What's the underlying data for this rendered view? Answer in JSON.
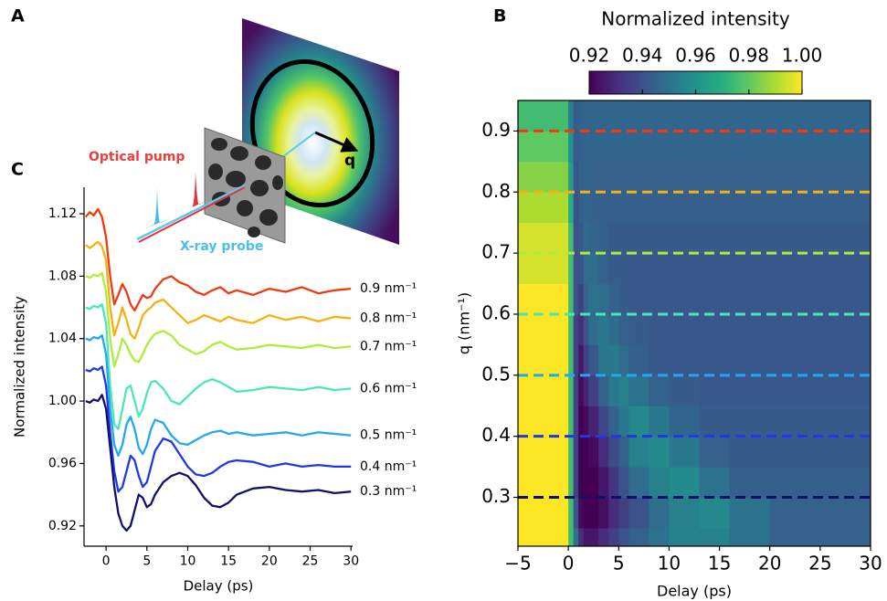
{
  "panel_labels": [
    "A",
    "B",
    "C"
  ],
  "schematic": {
    "pump_label": "Optical pump",
    "probe_label": "X-ray probe",
    "q_label": "q"
  },
  "chart_data": [
    {
      "type": "line",
      "xlabel": "Delay (ps)",
      "ylabel": "Normalized intensity",
      "x": [
        -2.5,
        -2,
        -1.5,
        -1,
        -0.5,
        0,
        0.5,
        1,
        1.5,
        2,
        2.5,
        3,
        3.5,
        4,
        4.5,
        5,
        5.5,
        6,
        7,
        8,
        9,
        10,
        11,
        12,
        13,
        14,
        15,
        16,
        18,
        20,
        22,
        24,
        26,
        28,
        30
      ],
      "xlim": [
        -2.7,
        30.2
      ],
      "xticks": [
        0,
        5,
        10,
        15,
        20,
        25,
        30
      ],
      "ylim": [
        0.907,
        1.137
      ],
      "yticks": [
        0.92,
        0.96,
        {
          "value": 1,
          "label": "1.00"
        },
        1.04,
        1.08,
        1.12
      ],
      "series": [
        {
          "name": "0.9 nm⁻¹",
          "color": "#f03a10",
          "values": [
            1.118,
            1.121,
            1.119,
            1.123,
            1.118,
            1.105,
            1.08,
            1.062,
            1.068,
            1.075,
            1.07,
            1.062,
            1.058,
            1.063,
            1.068,
            1.066,
            1.067,
            1.072,
            1.078,
            1.08,
            1.076,
            1.074,
            1.07,
            1.068,
            1.071,
            1.073,
            1.069,
            1.071,
            1.068,
            1.072,
            1.07,
            1.073,
            1.069,
            1.071,
            1.072
          ]
        },
        {
          "name": "0.8 nm⁻¹",
          "color": "#f8b010",
          "values": [
            1.1,
            1.098,
            1.1,
            1.102,
            1.099,
            1.09,
            1.06,
            1.042,
            1.05,
            1.06,
            1.052,
            1.043,
            1.04,
            1.047,
            1.055,
            1.058,
            1.06,
            1.063,
            1.065,
            1.06,
            1.055,
            1.05,
            1.052,
            1.055,
            1.053,
            1.051,
            1.054,
            1.052,
            1.05,
            1.055,
            1.052,
            1.054,
            1.051,
            1.054,
            1.053
          ]
        },
        {
          "name": "0.7 nm⁻¹",
          "color": "#b0ec3c",
          "values": [
            1.08,
            1.079,
            1.081,
            1.08,
            1.082,
            1.07,
            1.04,
            1.022,
            1.03,
            1.04,
            1.036,
            1.03,
            1.026,
            1.025,
            1.03,
            1.036,
            1.04,
            1.043,
            1.045,
            1.042,
            1.036,
            1.033,
            1.03,
            1.032,
            1.036,
            1.038,
            1.035,
            1.033,
            1.034,
            1.036,
            1.035,
            1.034,
            1.036,
            1.034,
            1.035
          ]
        },
        {
          "name": "0.6 nm⁻¹",
          "color": "#48e8b8",
          "values": [
            1.06,
            1.059,
            1.061,
            1.06,
            1.062,
            1.05,
            1.01,
            0.985,
            0.982,
            0.995,
            1.008,
            1.01,
            1.0,
            0.99,
            0.995,
            1.005,
            1.012,
            1.013,
            1.008,
            1.0,
            0.998,
            1.003,
            1.008,
            1.012,
            1.014,
            1.012,
            1.009,
            1.006,
            1.007,
            1.009,
            1.008,
            1.007,
            1.009,
            1.007,
            1.008
          ]
        },
        {
          "name": "0.5 nm⁻¹",
          "color": "#20a8f0",
          "values": [
            1.04,
            1.039,
            1.041,
            1.04,
            1.042,
            1.03,
            0.995,
            0.972,
            0.965,
            0.972,
            0.985,
            0.99,
            0.982,
            0.97,
            0.966,
            0.972,
            0.982,
            0.988,
            0.986,
            0.978,
            0.973,
            0.972,
            0.975,
            0.978,
            0.98,
            0.981,
            0.979,
            0.98,
            0.978,
            0.979,
            0.98,
            0.978,
            0.98,
            0.979,
            0.978
          ]
        },
        {
          "name": "0.4 nm⁻¹",
          "color": "#2038e6",
          "values": [
            1.02,
            1.019,
            1.021,
            1.02,
            1.022,
            1.01,
            0.98,
            0.955,
            0.942,
            0.945,
            0.955,
            0.965,
            0.962,
            0.952,
            0.945,
            0.948,
            0.958,
            0.968,
            0.976,
            0.974,
            0.966,
            0.958,
            0.953,
            0.952,
            0.954,
            0.958,
            0.961,
            0.962,
            0.961,
            0.958,
            0.96,
            0.958,
            0.959,
            0.958,
            0.958
          ]
        },
        {
          "name": "0.3 nm⁻¹",
          "color": "#10106a",
          "values": [
            1.0,
            0.999,
            1.001,
            1.0,
            1.004,
            0.995,
            0.97,
            0.945,
            0.928,
            0.92,
            0.917,
            0.92,
            0.93,
            0.94,
            0.938,
            0.932,
            0.934,
            0.94,
            0.948,
            0.952,
            0.954,
            0.952,
            0.946,
            0.938,
            0.933,
            0.932,
            0.935,
            0.94,
            0.944,
            0.945,
            0.943,
            0.942,
            0.943,
            0.941,
            0.942
          ]
        }
      ]
    },
    {
      "type": "heatmap",
      "xlabel": "Delay (ps)",
      "ylabel": "q (nm⁻¹)",
      "xlim": [
        -5,
        30
      ],
      "xticks": [
        {
          "value": -5,
          "label": "−5"
        },
        0,
        5,
        10,
        15,
        20,
        25,
        30
      ],
      "ylim": [
        0.22,
        0.95
      ],
      "yticks": [
        0.3,
        0.4,
        0.5,
        0.6,
        0.7,
        0.8,
        0.9
      ],
      "xbins": [
        -5,
        0,
        0.5,
        1,
        1.5,
        2,
        3,
        4,
        5,
        6,
        8,
        10,
        13,
        16,
        20,
        25,
        30
      ],
      "ybins": [
        0.22,
        0.25,
        0.3,
        0.35,
        0.4,
        0.45,
        0.5,
        0.55,
        0.6,
        0.65,
        0.7,
        0.75,
        0.8,
        0.85,
        0.9,
        0.95
      ],
      "values": [
        [
          1.0,
          0.975,
          0.95,
          0.93,
          0.925,
          0.925,
          0.93,
          0.935,
          0.94,
          0.945,
          0.95,
          0.955,
          0.955,
          0.95,
          0.945,
          0.945
        ],
        [
          1.0,
          0.975,
          0.94,
          0.922,
          0.92,
          0.92,
          0.923,
          0.93,
          0.935,
          0.94,
          0.948,
          0.955,
          0.957,
          0.95,
          0.945,
          0.945
        ],
        [
          1.0,
          0.975,
          0.935,
          0.92,
          0.92,
          0.92,
          0.925,
          0.932,
          0.94,
          0.948,
          0.955,
          0.958,
          0.95,
          0.944,
          0.944,
          0.944
        ],
        [
          1.0,
          0.975,
          0.935,
          0.92,
          0.92,
          0.922,
          0.93,
          0.938,
          0.945,
          0.955,
          0.958,
          0.952,
          0.945,
          0.943,
          0.943,
          0.943
        ],
        [
          1.0,
          0.975,
          0.935,
          0.92,
          0.922,
          0.928,
          0.937,
          0.945,
          0.952,
          0.957,
          0.952,
          0.946,
          0.943,
          0.943,
          0.943,
          0.943
        ],
        [
          1.0,
          0.975,
          0.935,
          0.922,
          0.928,
          0.935,
          0.945,
          0.952,
          0.955,
          0.95,
          0.945,
          0.943,
          0.942,
          0.942,
          0.942,
          0.942
        ],
        [
          1.0,
          0.975,
          0.935,
          0.925,
          0.935,
          0.942,
          0.952,
          0.952,
          0.948,
          0.944,
          0.942,
          0.942,
          0.942,
          0.942,
          0.942,
          0.942
        ],
        [
          1.0,
          0.975,
          0.935,
          0.93,
          0.94,
          0.948,
          0.952,
          0.948,
          0.945,
          0.943,
          0.942,
          0.942,
          0.942,
          0.942,
          0.942,
          0.942
        ],
        [
          1.0,
          0.975,
          0.94,
          0.935,
          0.945,
          0.95,
          0.948,
          0.945,
          0.943,
          0.942,
          0.942,
          0.942,
          0.942,
          0.942,
          0.942,
          0.942
        ],
        [
          0.995,
          0.975,
          0.94,
          0.94,
          0.948,
          0.948,
          0.945,
          0.943,
          0.943,
          0.942,
          0.942,
          0.942,
          0.942,
          0.942,
          0.942,
          0.942
        ],
        [
          0.995,
          0.975,
          0.94,
          0.942,
          0.947,
          0.946,
          0.944,
          0.943,
          0.943,
          0.943,
          0.943,
          0.943,
          0.943,
          0.943,
          0.943,
          0.943
        ],
        [
          0.99,
          0.97,
          0.94,
          0.944,
          0.946,
          0.945,
          0.944,
          0.944,
          0.944,
          0.944,
          0.944,
          0.944,
          0.944,
          0.944,
          0.944,
          0.944
        ],
        [
          0.985,
          0.965,
          0.942,
          0.945,
          0.946,
          0.945,
          0.945,
          0.945,
          0.945,
          0.945,
          0.945,
          0.945,
          0.945,
          0.945,
          0.945,
          0.945
        ],
        [
          0.98,
          0.96,
          0.943,
          0.945,
          0.946,
          0.946,
          0.946,
          0.946,
          0.946,
          0.946,
          0.946,
          0.946,
          0.946,
          0.946,
          0.946,
          0.946
        ],
        [
          0.975,
          0.955,
          0.943,
          0.945,
          0.946,
          0.946,
          0.946,
          0.946,
          0.946,
          0.946,
          0.946,
          0.946,
          0.946,
          0.946,
          0.946,
          0.946
        ]
      ],
      "colormap": "viridis",
      "colorbar": {
        "title": "Normalized intensity",
        "clim": [
          0.92,
          1.0
        ],
        "ticks": [
          0.92,
          0.94,
          0.96,
          0.98,
          {
            "value": 1,
            "label": "1.00"
          }
        ]
      },
      "hlines": [
        {
          "value": 0.9,
          "color": "#f03a10"
        },
        {
          "value": 0.8,
          "color": "#f8b010"
        },
        {
          "value": 0.7,
          "color": "#b0ec3c"
        },
        {
          "value": 0.6,
          "color": "#48e8b8"
        },
        {
          "value": 0.5,
          "color": "#20a8f0"
        },
        {
          "value": 0.4,
          "color": "#2038e6"
        },
        {
          "value": 0.3,
          "color": "#10106a"
        }
      ]
    }
  ]
}
